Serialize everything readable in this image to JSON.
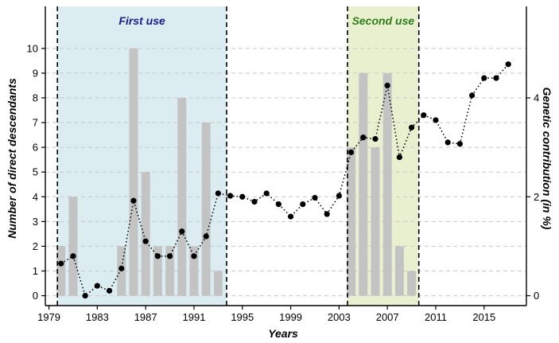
{
  "chart_data": {
    "type": "bar",
    "title": "",
    "xlabel": "Years",
    "ylabel": "Number of direct descendants",
    "y2label": "Genetic contribution (in %)",
    "xlim": [
      1978.7,
      2018.5
    ],
    "ylim": [
      -0.4,
      11.7
    ],
    "y2lim": [
      -0.2,
      5.85
    ],
    "x_ticks": [
      1979,
      1983,
      1987,
      1991,
      1995,
      1999,
      2003,
      2007,
      2011,
      2015
    ],
    "y_ticks": [
      0,
      1,
      2,
      3,
      4,
      5,
      6,
      7,
      8,
      9,
      10
    ],
    "y2_ticks": [
      0,
      2,
      4
    ],
    "grid": true,
    "periods": [
      {
        "label": "First use",
        "start": 1979.7,
        "end": 1993.7,
        "fill": "#dcedf2",
        "text_color": "#1a1a8c"
      },
      {
        "label": "Second use",
        "start": 2003.7,
        "end": 2009.6,
        "fill": "#e9f0cf",
        "text_color": "#2e7d1a"
      }
    ],
    "bars": {
      "name": "Number of direct descendants",
      "color": "#c3c3c3",
      "years": [
        1980,
        1981,
        1982,
        1983,
        1984,
        1985,
        1986,
        1987,
        1988,
        1989,
        1990,
        1991,
        1992,
        1993,
        2004,
        2005,
        2006,
        2007,
        2008,
        2009
      ],
      "values": [
        2,
        4,
        0,
        0,
        0,
        2,
        10,
        5,
        2,
        2,
        8,
        2,
        7,
        1,
        6,
        9,
        6,
        9,
        2,
        1
      ]
    },
    "line": {
      "name": "Genetic contribution (in %)",
      "color": "#000000",
      "years": [
        1980,
        1981,
        1982,
        1983,
        1984,
        1985,
        1986,
        1987,
        1988,
        1989,
        1990,
        1991,
        1992,
        1993,
        1994,
        1995,
        1996,
        1997,
        1998,
        1999,
        2000,
        2001,
        2002,
        2003,
        2004,
        2005,
        2006,
        2007,
        2008,
        2009,
        2010,
        2011,
        2012,
        2013,
        2014,
        2015,
        2016,
        2017
      ],
      "values": [
        0.65,
        0.8,
        0.0,
        0.2,
        0.1,
        0.55,
        1.92,
        1.1,
        0.8,
        0.8,
        1.3,
        0.8,
        1.2,
        2.07,
        2.02,
        2.0,
        1.9,
        2.07,
        1.85,
        1.6,
        1.85,
        1.98,
        1.65,
        2.02,
        2.9,
        3.2,
        3.17,
        4.25,
        2.8,
        3.4,
        3.65,
        3.55,
        3.1,
        3.07,
        4.05,
        4.4,
        4.4,
        4.68
      ]
    }
  }
}
